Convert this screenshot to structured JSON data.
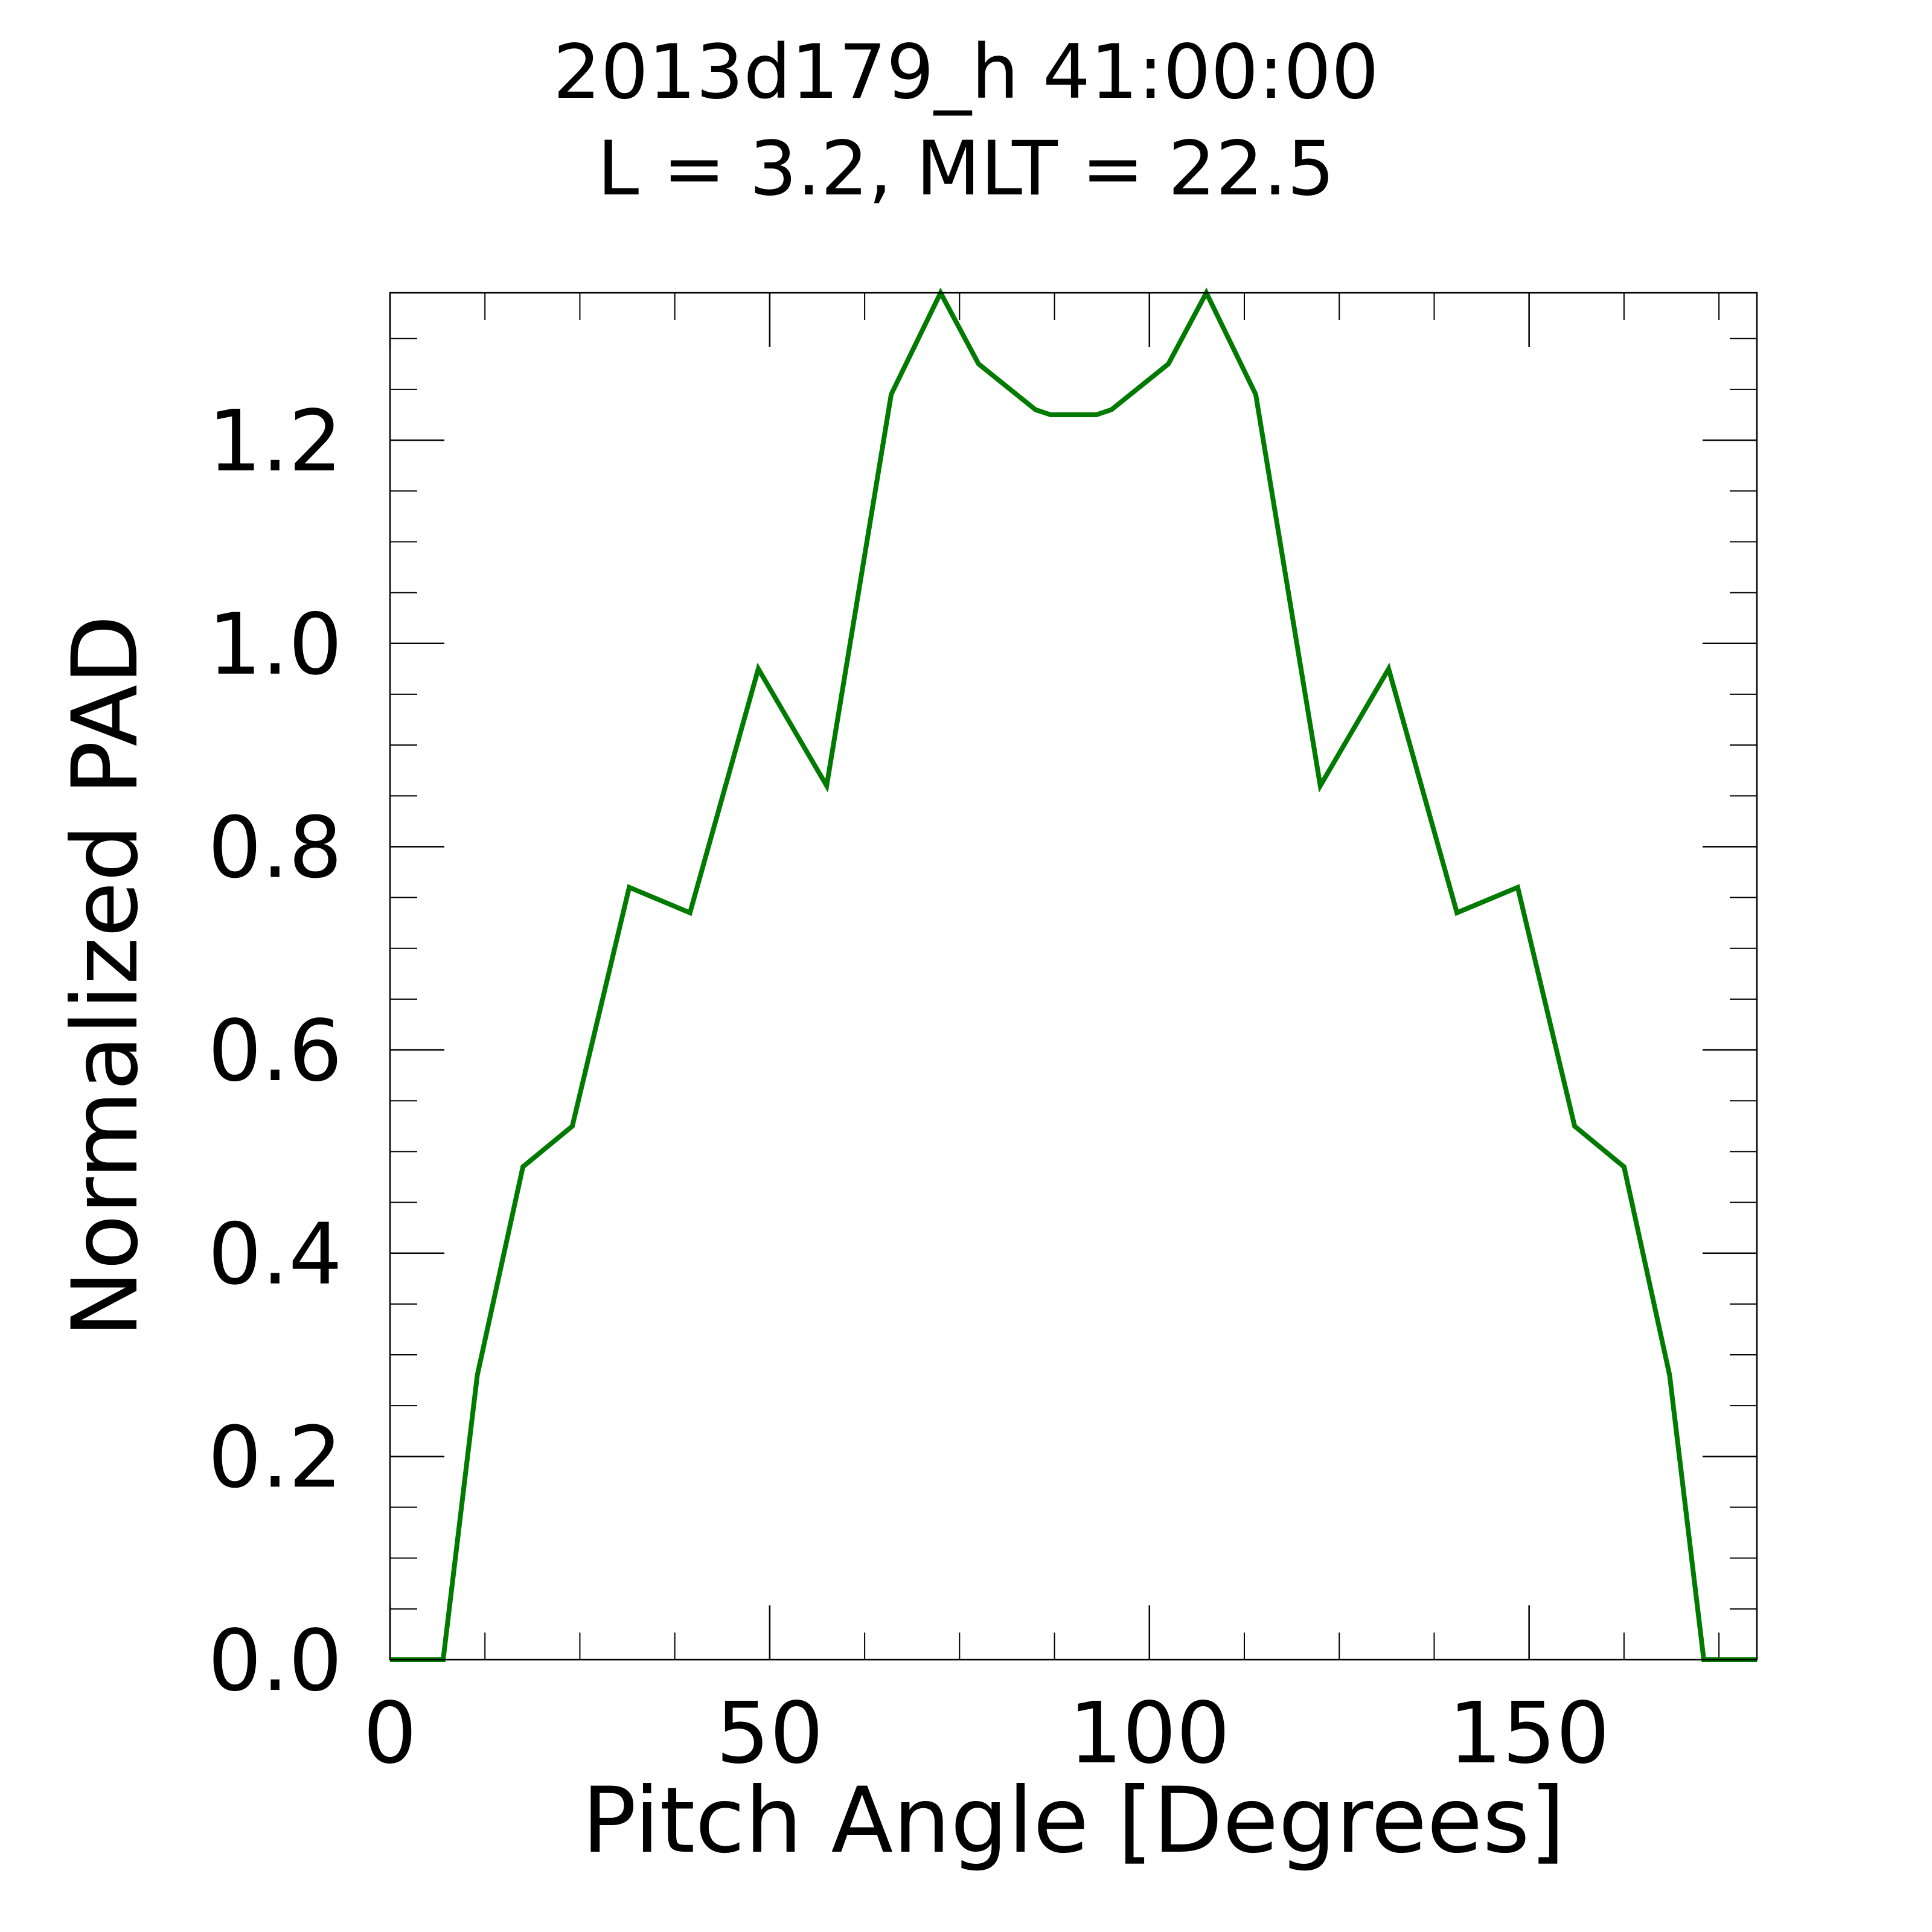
{
  "chart_data": {
    "type": "line",
    "title_line1": "2013d179_h  41:00:00",
    "title_line2": "L = 3.2, MLT = 22.5",
    "xlabel": "Pitch Angle [Degrees]",
    "ylabel": "Normalized PAD",
    "xlim": [
      0,
      180
    ],
    "ylim": [
      0,
      1.345
    ],
    "x_ticks": [
      0,
      50,
      100,
      150
    ],
    "x_tick_labels": [
      "0",
      "50",
      "100",
      "150"
    ],
    "y_ticks": [
      0.0,
      0.2,
      0.4,
      0.6,
      0.8,
      1.0,
      1.2
    ],
    "y_tick_labels": [
      "0.0",
      "0.2",
      "0.4",
      "0.6",
      "0.8",
      "1.0",
      "1.2"
    ],
    "grid": false,
    "series": [
      {
        "color": "#007a00",
        "x": [
          0,
          7,
          11.5,
          17.5,
          24,
          31.5,
          39.5,
          48.5,
          57.5,
          66,
          72.5,
          77.5,
          85,
          87,
          93,
          95,
          102.5,
          107.5,
          114,
          122.5,
          131.5,
          140.5,
          148.5,
          156,
          162.5,
          168.5,
          173,
          180
        ],
        "y": [
          0,
          0,
          0.28,
          0.485,
          0.525,
          0.76,
          0.735,
          0.975,
          0.86,
          1.245,
          1.345,
          1.275,
          1.23,
          1.225,
          1.225,
          1.23,
          1.275,
          1.345,
          1.245,
          0.86,
          0.975,
          0.735,
          0.76,
          0.525,
          0.485,
          0.28,
          0,
          0
        ]
      }
    ]
  }
}
